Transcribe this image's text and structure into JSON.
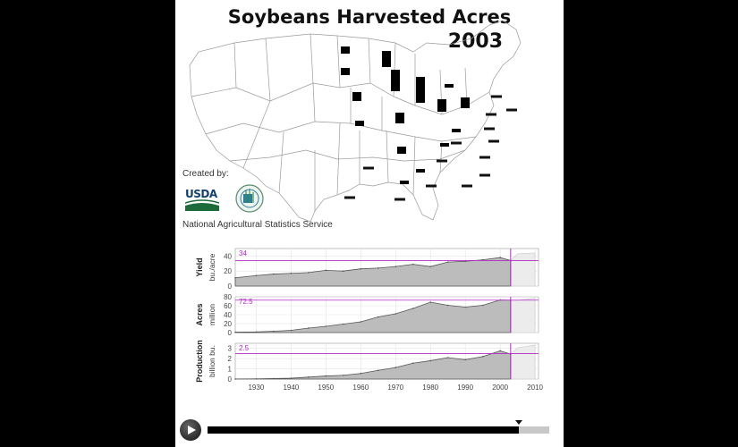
{
  "title": "Soybeans Harvested Acres",
  "year": "2003",
  "credits": {
    "created_by": "Created by:",
    "usda": "USDA",
    "agency": "National Agricultural Statistics Service"
  },
  "colors": {
    "area_fill": "#bcbcbc",
    "area_line": "#555555",
    "marker": "#b02bc4",
    "state_bar": "#000000"
  },
  "map_bars": [
    {
      "state": "ND",
      "w": 1.0,
      "h": 0.4
    },
    {
      "state": "SD",
      "w": 1.0,
      "h": 0.4
    },
    {
      "state": "NE",
      "w": 1.0,
      "h": 0.5
    },
    {
      "state": "KS",
      "w": 1.0,
      "h": 0.3
    },
    {
      "state": "MN",
      "w": 1.0,
      "h": 0.9
    },
    {
      "state": "IA",
      "w": 1.0,
      "h": 1.2
    },
    {
      "state": "MO",
      "w": 1.0,
      "h": 0.6
    },
    {
      "state": "WI",
      "w": 1.0,
      "h": 0.2
    },
    {
      "state": "IL",
      "w": 1.0,
      "h": 1.3
    },
    {
      "state": "IN",
      "w": 1.0,
      "h": 0.7
    },
    {
      "state": "OH",
      "w": 1.0,
      "h": 0.6
    },
    {
      "state": "MI",
      "w": 1.0,
      "h": 0.2
    },
    {
      "state": "AR",
      "w": 1.0,
      "h": 0.4
    },
    {
      "state": "KY",
      "w": 1.0,
      "h": 0.2
    },
    {
      "state": "TN",
      "w": 1.0,
      "h": 0.2
    },
    {
      "state": "MS",
      "w": 1.0,
      "h": 0.2
    },
    {
      "state": "LA",
      "w": 1.0,
      "h": 0.2
    }
  ],
  "chart_data": {
    "type": "area",
    "xlabel": "",
    "x_ticks": [
      "1930",
      "1940",
      "1950",
      "1960",
      "1970",
      "1980",
      "1990",
      "2000",
      "2010"
    ],
    "xlim": [
      1924,
      2011
    ],
    "current_year": 2003,
    "panels": [
      {
        "ylabel_main": "Yield",
        "ylabel_unit": "bu./acre",
        "yticks": [
          "0",
          "20",
          "40"
        ],
        "ylim": [
          0,
          50
        ],
        "current_value_label": "34",
        "current_value": 34,
        "x": [
          1924,
          1930,
          1935,
          1940,
          1945,
          1950,
          1955,
          1960,
          1965,
          1970,
          1975,
          1980,
          1985,
          1990,
          1995,
          2000,
          2003,
          2005,
          2010
        ],
        "y": [
          11,
          14,
          16,
          17,
          18,
          21,
          20,
          23,
          24,
          26,
          29,
          26,
          32,
          33,
          35,
          38,
          34,
          43,
          44
        ]
      },
      {
        "ylabel_main": "Acres",
        "ylabel_unit": "million",
        "yticks": [
          "0",
          "20",
          "40",
          "60",
          "80"
        ],
        "ylim": [
          0,
          80
        ],
        "current_value_label": "72.5",
        "current_value": 72.5,
        "x": [
          1924,
          1930,
          1935,
          1940,
          1945,
          1950,
          1955,
          1960,
          1965,
          1970,
          1975,
          1980,
          1985,
          1990,
          1995,
          2000,
          2003,
          2005,
          2010
        ],
        "y": [
          1,
          1.5,
          3,
          5,
          10,
          14,
          19,
          24,
          35,
          42,
          54,
          68,
          61,
          57,
          61,
          73,
          72.5,
          72,
          77
        ]
      },
      {
        "ylabel_main": "Production",
        "ylabel_unit": "billion bu.",
        "yticks": [
          "0",
          "1",
          "2",
          "3"
        ],
        "ylim": [
          0,
          3.5
        ],
        "current_value_label": "2.5",
        "current_value": 2.5,
        "x": [
          1924,
          1930,
          1935,
          1940,
          1945,
          1950,
          1955,
          1960,
          1965,
          1970,
          1975,
          1980,
          1985,
          1990,
          1995,
          2000,
          2003,
          2005,
          2010
        ],
        "y": [
          0.005,
          0.02,
          0.05,
          0.08,
          0.19,
          0.3,
          0.37,
          0.55,
          0.85,
          1.13,
          1.55,
          1.8,
          2.1,
          1.9,
          2.2,
          2.76,
          2.45,
          3.06,
          3.33
        ]
      }
    ]
  },
  "player": {
    "progress": 0.91
  }
}
